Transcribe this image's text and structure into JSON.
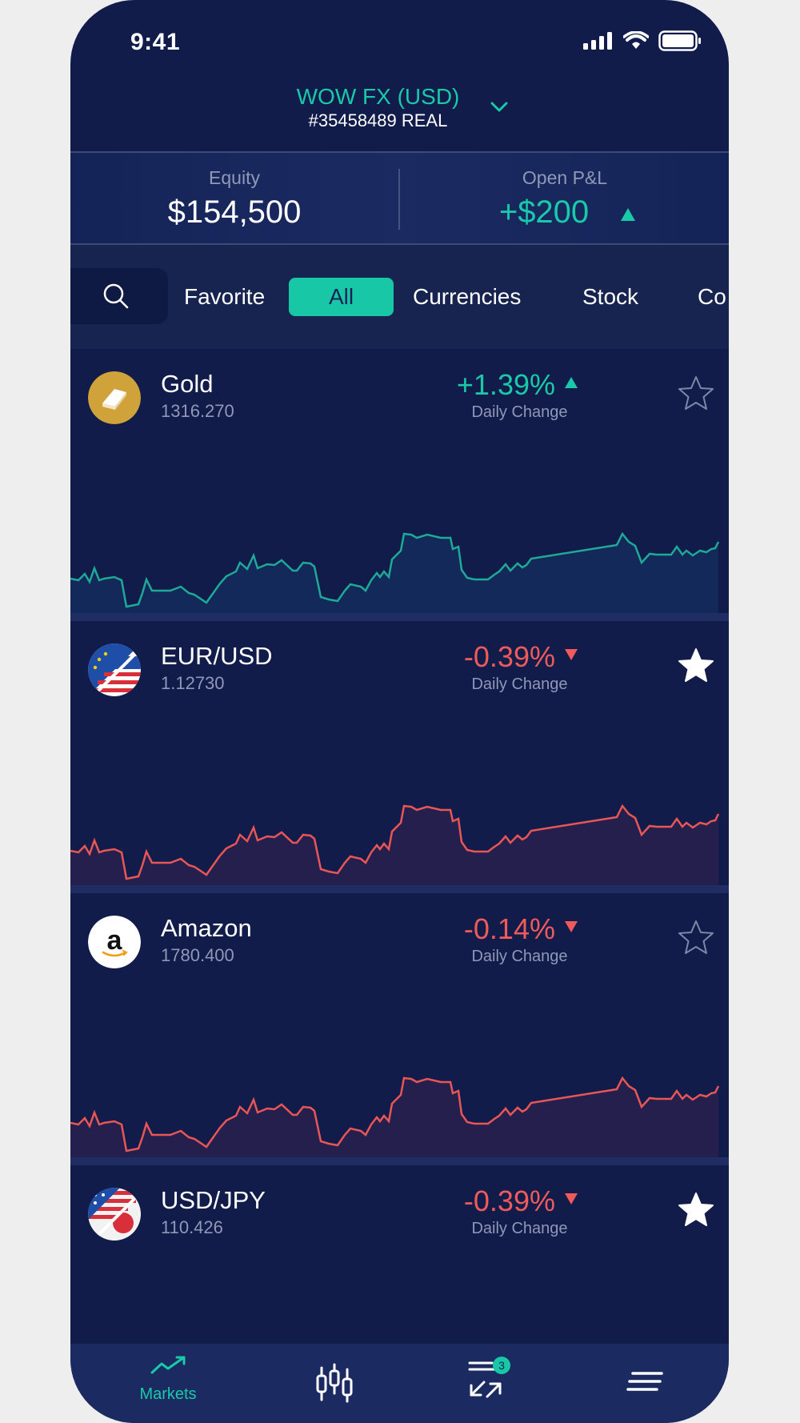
{
  "status_bar": {
    "time": "9:41"
  },
  "account": {
    "name": "WOW FX (USD)",
    "id": "#35458489 REAL"
  },
  "summary": {
    "equity_label": "Equity",
    "equity_value": "$154,500",
    "pnl_label": "Open P&L",
    "pnl_value": "+$200"
  },
  "filters": [
    "Favorite",
    "All",
    "Currencies",
    "Stock",
    "Co"
  ],
  "active_filter": "All",
  "markets": [
    {
      "name": "Gold",
      "price": "1316.270",
      "change": "+1.39%",
      "direction": "up",
      "change_label": "Daily Change",
      "favorite": false
    },
    {
      "name": "EUR/USD",
      "price": "1.12730",
      "change": "-0.39%",
      "direction": "down",
      "change_label": "Daily Change",
      "favorite": true
    },
    {
      "name": "Amazon",
      "price": "1780.400",
      "change": "-0.14%",
      "direction": "down",
      "change_label": "Daily Change",
      "favorite": false
    },
    {
      "name": "USD/JPY",
      "price": "110.426",
      "change": "-0.39%",
      "direction": "down",
      "change_label": "Daily Change",
      "favorite": true
    }
  ],
  "bottom_nav": {
    "markets_label": "Markets",
    "badge_count": "3"
  },
  "colors": {
    "background": "#111c4a",
    "accent_green": "#19c9a8",
    "negative_red": "#ef5a5a",
    "muted_text": "#8f98b6"
  }
}
